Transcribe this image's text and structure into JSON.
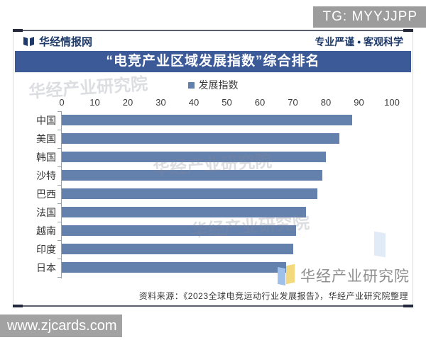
{
  "overlay": {
    "tg_label": "TG: MYYJJPP",
    "site_label": "www.zjcards.com"
  },
  "header": {
    "brand": "华经情报网",
    "slogan": "专业严谨 • 客观科学"
  },
  "banner_title": "“电竞产业区域发展指数”综合排名",
  "legend_label": "发展指数",
  "chart_data": {
    "type": "bar",
    "orientation": "horizontal",
    "title": "“电竞产业区域发展指数”综合排名",
    "legend": [
      "发展指数"
    ],
    "categories": [
      "中国",
      "美国",
      "韩国",
      "沙特",
      "巴西",
      "法国",
      "越南",
      "印度",
      "日本"
    ],
    "values": [
      88,
      84,
      80,
      79,
      77.5,
      74,
      71,
      70,
      68
    ],
    "xlim": [
      0,
      100
    ],
    "xticks": [
      0,
      10,
      20,
      30,
      40,
      50,
      60,
      70,
      80,
      90,
      100
    ],
    "xlabel": "",
    "ylabel": "",
    "grid": false,
    "legend_position": "top-center",
    "axis_position": "top",
    "bar_color": "#6480ad"
  },
  "watermarks": {
    "faint_text": "华经产业研究院",
    "bottom_right_text": "华经产业研究院"
  },
  "source_line": "资料来源：《2023全球电竞运动行业发展报告》，华经产业研究院整理",
  "colors": {
    "banner_bg": "#3c5a97",
    "bar_fill": "#6480ad",
    "brand_text": "#1d3a6a",
    "watermark_gray": "#9c9c9c"
  }
}
